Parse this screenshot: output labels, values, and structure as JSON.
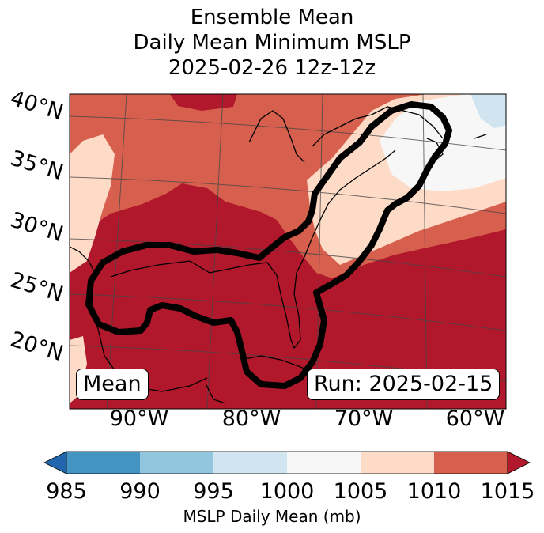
{
  "title": {
    "line1": "Ensemble Mean",
    "line2": "Daily Mean Minimum MSLP",
    "line3": "2025-02-26 12z-12z"
  },
  "map": {
    "lat_labels": [
      "40°N",
      "35°N",
      "30°N",
      "25°N",
      "20°N"
    ],
    "lon_labels": [
      "90°W",
      "80°W",
      "70°W",
      "60°W"
    ],
    "mean_label": "Mean",
    "run_label": "Run: 2025-02-15"
  },
  "colorbar": {
    "ticks": [
      "985",
      "990",
      "995",
      "1000",
      "1005",
      "1010",
      "1015"
    ],
    "label": "MSLP Daily Mean (mb)",
    "colors": [
      "#2166ac",
      "#4393c3",
      "#92c5de",
      "#d1e5f0",
      "#f7f7f7",
      "#fddbc7",
      "#d6604d",
      "#b2182b"
    ]
  }
}
